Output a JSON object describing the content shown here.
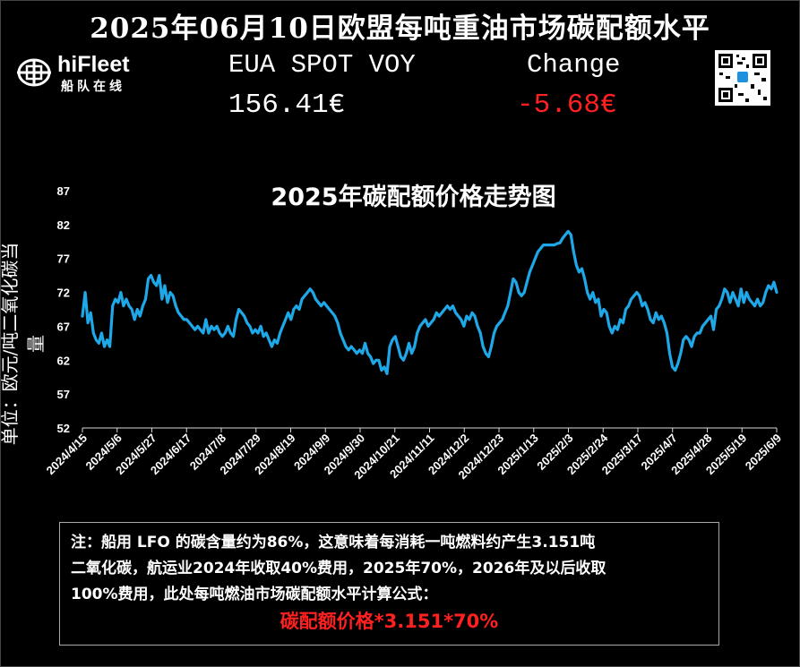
{
  "header": {
    "title": "2025年06月10日欧盟每吨重油市场碳配额水平"
  },
  "brand": {
    "name": "hiFleet",
    "subtitle": "船队在线"
  },
  "quote": {
    "instrument_label": "EUA SPOT VOY",
    "change_label": "Change",
    "price": "156.41€",
    "change": "-5.68€",
    "change_color": "#ff2020"
  },
  "chart_title": "2025年碳配额价格走势图",
  "chart_data": {
    "type": "line",
    "title": "2025年碳配额价格走势图",
    "ylabel": "单位：欧元/吨二氧化碳当量",
    "xlabel": "",
    "ylim": [
      52,
      87
    ],
    "yticks": [
      87,
      82,
      77,
      72,
      67,
      62,
      57,
      52
    ],
    "xticks": [
      "2024/4/15",
      "2024/5/6",
      "2024/5/27",
      "2024/6/17",
      "2024/7/8",
      "2024/7/29",
      "2024/8/19",
      "2024/9/9",
      "2024/9/30",
      "2024/10/21",
      "2024/11/11",
      "2024/12/2",
      "2024/12/23",
      "2025/1/13",
      "2025/2/3",
      "2025/2/24",
      "2025/3/17",
      "2025/4/7",
      "2025/4/28",
      "2025/5/19",
      "2025/6/9"
    ],
    "grid": false,
    "line_color": "#1ea8e8",
    "series": [
      {
        "values": [
          68.5,
          72,
          67.5,
          69,
          66,
          65,
          64.5,
          66,
          64,
          65,
          64,
          70,
          71,
          70.5,
          72,
          70,
          71,
          70,
          69.5,
          68,
          69.5,
          68.5,
          70,
          71,
          74,
          74.5,
          73.5,
          73,
          74.5,
          71,
          73,
          70.5,
          72,
          71.5,
          70,
          69,
          68.5,
          68,
          68,
          67.5,
          67,
          66.5,
          67,
          66.5,
          66,
          68,
          66,
          67,
          66.5,
          67,
          66,
          65.5,
          66,
          67,
          66,
          65.5,
          68,
          69.5,
          69,
          68.5,
          67.5,
          67,
          66,
          66.5,
          66,
          67,
          65.5,
          66,
          65,
          64,
          65,
          64.5,
          66,
          67,
          68,
          69,
          68,
          69.5,
          70,
          69.5,
          71,
          71.5,
          72,
          72.5,
          72,
          71,
          70.5,
          70,
          70.5,
          70,
          69.5,
          69,
          68.5,
          67.5,
          66,
          65,
          64,
          63.5,
          64,
          63.5,
          63,
          63.5,
          63,
          64.5,
          63,
          62.5,
          61.5,
          62,
          62,
          60.5,
          61,
          60,
          64,
          65,
          65.5,
          64,
          62.5,
          62,
          63,
          64.5,
          63,
          64,
          66,
          67,
          67.5,
          68,
          67,
          67.5,
          68,
          69,
          68.5,
          69,
          69.5,
          70,
          69.5,
          70,
          69,
          68.5,
          68,
          67,
          68.5,
          68,
          69,
          68.5,
          67,
          66,
          64,
          63,
          62.5,
          64,
          66,
          67,
          67.5,
          68,
          69,
          70,
          72,
          74,
          73.5,
          72,
          71.5,
          72,
          73.5,
          75,
          76,
          77,
          78,
          78.5,
          79,
          79,
          79,
          79,
          79,
          79.2,
          79.3,
          80,
          80.5,
          81,
          80.5,
          78,
          76,
          75,
          75.5,
          74,
          72,
          71,
          72,
          70.5,
          71,
          68.5,
          69.5,
          69,
          67,
          66,
          67,
          66.5,
          68,
          67.5,
          69.5,
          70,
          71,
          71.5,
          72,
          71.5,
          70,
          70.5,
          69.5,
          68,
          67.5,
          69,
          68,
          68.5,
          67.5,
          66,
          63,
          61,
          60.5,
          61.5,
          63,
          65,
          65.5,
          65,
          64,
          65.5,
          66,
          66,
          67,
          67.5,
          68,
          68.5,
          66.5,
          69.5,
          70,
          71,
          72.5,
          72,
          70.5,
          72,
          71,
          70,
          72.5,
          70.5,
          72,
          71,
          70.5,
          70,
          71,
          70,
          70.5,
          72,
          73,
          72.5,
          73.5,
          72
        ]
      }
    ]
  },
  "note": {
    "line1": "注：船用 LFO 的碳含量约为86%，这意味着每消耗一吨燃料约产生3.151吨",
    "line2": "二氧化碳，航运业2024年收取40%费用，2025年70%，2026年及以后收取",
    "line3": "100%费用，此处每吨燃油市场碳配额水平计算公式：",
    "formula": "碳配额价格*3.151*70%",
    "formula_color": "#ff2020"
  }
}
